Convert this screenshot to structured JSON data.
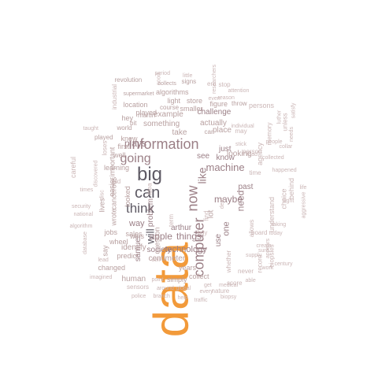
{
  "colors": {
    "accent": "#f29a3a",
    "dark": "#5e5a64",
    "mauve": "#9b7f86",
    "muted": "#b8a0a0",
    "light": "#cbb6b6"
  },
  "words": [
    {
      "text": "data",
      "color": "accent"
    },
    {
      "text": "information",
      "color": "mauve"
    },
    {
      "text": "big",
      "color": "dark"
    },
    {
      "text": "can",
      "color": "dark"
    },
    {
      "text": "going",
      "color": "mauve"
    },
    {
      "text": "think",
      "color": "dark"
    },
    {
      "text": "computer",
      "color": "mauve"
    },
    {
      "text": "now",
      "color": "mauve"
    },
    {
      "text": "like",
      "color": "mauve"
    },
    {
      "text": "will",
      "color": "dark"
    },
    {
      "text": "machine",
      "color": "mauve"
    },
    {
      "text": "apple",
      "color": "mauve"
    },
    {
      "text": "things",
      "color": "mauve"
    },
    {
      "text": "plays",
      "color": "mauve"
    },
    {
      "text": "maybe",
      "color": "mauve"
    },
    {
      "text": "challenge",
      "color": "mauve"
    },
    {
      "text": "technology",
      "color": "mauve"
    },
    {
      "text": "arthur",
      "color": "mauve"
    },
    {
      "text": "samuel",
      "color": "mauve"
    },
    {
      "text": "problem",
      "color": "mauve"
    },
    {
      "text": "one",
      "color": "mauve"
    },
    {
      "text": "use",
      "color": "mauve"
    },
    {
      "text": "need",
      "color": "mauve"
    },
    {
      "text": "past",
      "color": "mauve"
    },
    {
      "text": "know",
      "color": "mauve"
    },
    {
      "text": "see",
      "color": "mauve"
    },
    {
      "text": "just",
      "color": "mauve"
    },
    {
      "text": "way",
      "color": "mauve"
    },
    {
      "text": "society",
      "color": "mauve"
    },
    {
      "text": "something",
      "color": "muted"
    },
    {
      "text": "example",
      "color": "muted"
    },
    {
      "text": "actually",
      "color": "muted"
    },
    {
      "text": "place",
      "color": "muted"
    },
    {
      "text": "take",
      "color": "muted"
    },
    {
      "text": "lot",
      "color": "muted"
    },
    {
      "text": "looking",
      "color": "muted"
    },
    {
      "text": "centimeter",
      "color": "muted"
    },
    {
      "text": "years",
      "color": "muted"
    },
    {
      "text": "identify",
      "color": "muted"
    },
    {
      "text": "question",
      "color": "muted"
    },
    {
      "text": "wins",
      "color": "muted"
    },
    {
      "text": "sales",
      "color": "muted"
    },
    {
      "text": "predict",
      "color": "muted"
    },
    {
      "text": "human",
      "color": "muted"
    },
    {
      "text": "simply",
      "color": "muted"
    },
    {
      "text": "collect",
      "color": "muted"
    },
    {
      "text": "changed",
      "color": "muted"
    },
    {
      "text": "jobs",
      "color": "muted"
    },
    {
      "text": "wheel",
      "color": "muted"
    },
    {
      "text": "first",
      "color": "muted"
    },
    {
      "text": "well",
      "color": "muted"
    },
    {
      "text": "learning",
      "color": "muted"
    },
    {
      "text": "knew",
      "color": "muted"
    },
    {
      "text": "played",
      "color": "muted"
    },
    {
      "text": "location",
      "color": "muted"
    },
    {
      "text": "algorithms",
      "color": "muted"
    },
    {
      "text": "light",
      "color": "muted"
    },
    {
      "text": "store",
      "color": "muted"
    },
    {
      "text": "smaller",
      "color": "muted"
    },
    {
      "text": "figure",
      "color": "muted"
    },
    {
      "text": "throw",
      "color": "muted"
    },
    {
      "text": "revolution",
      "color": "muted"
    },
    {
      "text": "supermarket",
      "color": "muted"
    },
    {
      "text": "course",
      "color": "muted"
    },
    {
      "text": "car",
      "color": "muted"
    },
    {
      "text": "signs",
      "color": "muted"
    },
    {
      "text": "collects",
      "color": "muted"
    },
    {
      "text": "martin",
      "color": "muted"
    },
    {
      "text": "bit",
      "color": "muted"
    },
    {
      "text": "hey",
      "color": "muted"
    },
    {
      "text": "easier",
      "color": "muted"
    },
    {
      "text": "looked",
      "color": "muted"
    },
    {
      "text": "important",
      "color": "muted"
    },
    {
      "text": "lives",
      "color": "muted"
    },
    {
      "text": "cancerous",
      "color": "muted"
    },
    {
      "text": "wrote",
      "color": "muted"
    },
    {
      "text": "say",
      "color": "muted"
    },
    {
      "text": "played",
      "color": "muted"
    },
    {
      "text": "world",
      "color": "muted"
    },
    {
      "text": "period",
      "color": "light"
    },
    {
      "text": "little",
      "color": "light"
    },
    {
      "text": "researchers",
      "color": "light"
    },
    {
      "text": "era",
      "color": "light"
    },
    {
      "text": "stop",
      "color": "light"
    },
    {
      "text": "reason",
      "color": "light"
    },
    {
      "text": "even",
      "color": "light"
    },
    {
      "text": "attention",
      "color": "light"
    },
    {
      "text": "persons",
      "color": "light"
    },
    {
      "text": "luther",
      "color": "light"
    },
    {
      "text": "memory",
      "color": "light"
    },
    {
      "text": "agency",
      "color": "light"
    },
    {
      "text": "person",
      "color": "light"
    },
    {
      "text": "individual",
      "color": "light"
    },
    {
      "text": "road",
      "color": "light"
    },
    {
      "text": "stick",
      "color": "light"
    },
    {
      "text": "may",
      "color": "light"
    },
    {
      "text": "time",
      "color": "light"
    },
    {
      "text": "allows",
      "color": "light"
    },
    {
      "text": "understand",
      "color": "light"
    },
    {
      "text": "choice",
      "color": "light"
    },
    {
      "text": "behind",
      "color": "light"
    },
    {
      "text": "people",
      "color": "light"
    },
    {
      "text": "collected",
      "color": "light"
    },
    {
      "text": "collar",
      "color": "light"
    },
    {
      "text": "happened",
      "color": "light"
    },
    {
      "text": "flight",
      "color": "light"
    },
    {
      "text": "whether",
      "color": "light"
    },
    {
      "text": "never",
      "color": "light"
    },
    {
      "text": "score",
      "color": "light"
    },
    {
      "text": "board",
      "color": "light"
    },
    {
      "text": "today",
      "color": "light"
    },
    {
      "text": "taking",
      "color": "light"
    },
    {
      "text": "century",
      "color": "light"
    },
    {
      "text": "work",
      "color": "light"
    },
    {
      "text": "record",
      "color": "light"
    },
    {
      "text": "supply",
      "color": "light"
    },
    {
      "text": "sure",
      "color": "light"
    },
    {
      "text": "create",
      "color": "light"
    },
    {
      "text": "able",
      "color": "light"
    },
    {
      "text": "medical",
      "color": "light"
    },
    {
      "text": "nature",
      "color": "light"
    },
    {
      "text": "biopsy",
      "color": "light"
    },
    {
      "text": "traffic",
      "color": "light"
    },
    {
      "text": "help",
      "color": "light"
    },
    {
      "text": "branch",
      "color": "light"
    },
    {
      "text": "police",
      "color": "light"
    },
    {
      "text": "point",
      "color": "light"
    },
    {
      "text": "around",
      "color": "light"
    },
    {
      "text": "global",
      "color": "light"
    },
    {
      "text": "every",
      "color": "light"
    },
    {
      "text": "get",
      "color": "light"
    },
    {
      "text": "sensors",
      "color": "light"
    },
    {
      "text": "imagined",
      "color": "light"
    },
    {
      "text": "cell",
      "color": "light"
    },
    {
      "text": "lead",
      "color": "light"
    },
    {
      "text": "database",
      "color": "light"
    },
    {
      "text": "algorithm",
      "color": "light"
    },
    {
      "text": "security",
      "color": "light"
    },
    {
      "text": "national",
      "color": "light"
    },
    {
      "text": "times",
      "color": "light"
    },
    {
      "text": "careful",
      "color": "light"
    },
    {
      "text": "taught",
      "color": "light"
    },
    {
      "text": "industrial",
      "color": "light"
    },
    {
      "text": "discovered",
      "color": "light"
    },
    {
      "text": "disc",
      "color": "light"
    },
    {
      "text": "loses",
      "color": "light"
    },
    {
      "text": "buy",
      "color": "light"
    },
    {
      "text": "term",
      "color": "light"
    },
    {
      "text": "idea",
      "color": "light"
    },
    {
      "text": "old",
      "color": "light"
    },
    {
      "text": "deal",
      "color": "light"
    },
    {
      "text": "find",
      "color": "light"
    },
    {
      "text": "good",
      "color": "light"
    },
    {
      "text": "aggressive",
      "color": "light"
    },
    {
      "text": "life",
      "color": "light"
    },
    {
      "text": "needs",
      "color": "light"
    },
    {
      "text": "unless",
      "color": "light"
    },
    {
      "text": "satisfy",
      "color": "light"
    },
    {
      "text": "biopsies",
      "color": "light"
    },
    {
      "text": "appears",
      "color": "light"
    }
  ]
}
